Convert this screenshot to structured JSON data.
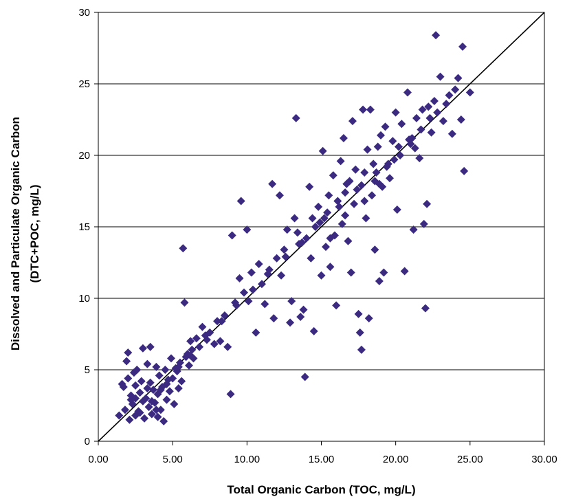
{
  "chart_data": {
    "type": "scatter",
    "title": "",
    "xlabel": "Total Organic Carbon (TOC, mg/L)",
    "ylabel_line1": "Dissolved and Particulate Organic Carbon",
    "ylabel_line2": "(DTC+POC, mg/L)",
    "xlim": [
      0,
      30
    ],
    "ylim": [
      0,
      30
    ],
    "x_ticks": [
      "0.00",
      "5.00",
      "10.00",
      "15.00",
      "20.00",
      "25.00",
      "30.00"
    ],
    "y_ticks": [
      "0",
      "5",
      "10",
      "15",
      "20",
      "25",
      "30"
    ],
    "grid": "horizontal",
    "reference_line": {
      "from": [
        0,
        0
      ],
      "to": [
        30,
        30
      ]
    },
    "marker": "diamond",
    "marker_color": "#3b2a80",
    "points": [
      [
        1.4,
        1.8
      ],
      [
        1.6,
        4.0
      ],
      [
        1.7,
        3.8
      ],
      [
        1.8,
        2.2
      ],
      [
        1.9,
        5.6
      ],
      [
        2.0,
        6.2
      ],
      [
        2.0,
        4.4
      ],
      [
        2.1,
        1.5
      ],
      [
        2.2,
        3.2
      ],
      [
        2.3,
        2.6
      ],
      [
        2.4,
        4.8
      ],
      [
        2.5,
        3.9
      ],
      [
        2.5,
        1.8
      ],
      [
        2.6,
        5.0
      ],
      [
        2.7,
        2.1
      ],
      [
        2.8,
        3.4
      ],
      [
        2.9,
        4.2
      ],
      [
        3.0,
        2.8
      ],
      [
        3.0,
        6.5
      ],
      [
        3.1,
        1.6
      ],
      [
        3.2,
        3.0
      ],
      [
        3.3,
        5.4
      ],
      [
        3.4,
        2.4
      ],
      [
        3.5,
        4.1
      ],
      [
        3.5,
        6.6
      ],
      [
        3.6,
        1.9
      ],
      [
        3.7,
        3.6
      ],
      [
        3.8,
        2.7
      ],
      [
        3.9,
        5.2
      ],
      [
        4.0,
        3.3
      ],
      [
        4.0,
        1.7
      ],
      [
        4.1,
        4.6
      ],
      [
        4.2,
        2.2
      ],
      [
        4.3,
        3.8
      ],
      [
        4.4,
        1.4
      ],
      [
        4.5,
        5.0
      ],
      [
        4.6,
        2.9
      ],
      [
        4.7,
        4.3
      ],
      [
        4.8,
        3.5
      ],
      [
        4.9,
        5.8
      ],
      [
        5.0,
        4.4
      ],
      [
        5.1,
        2.6
      ],
      [
        5.2,
        5.1
      ],
      [
        5.3,
        4.9
      ],
      [
        5.4,
        3.7
      ],
      [
        5.5,
        5.5
      ],
      [
        5.6,
        4.2
      ],
      [
        5.7,
        13.5
      ],
      [
        5.8,
        9.7
      ],
      [
        5.9,
        5.9
      ],
      [
        6.0,
        6.1
      ],
      [
        6.1,
        5.3
      ],
      [
        6.2,
        7.0
      ],
      [
        6.3,
        6.4
      ],
      [
        6.4,
        5.8
      ],
      [
        6.6,
        7.2
      ],
      [
        6.8,
        6.6
      ],
      [
        7.0,
        8.0
      ],
      [
        7.2,
        7.4
      ],
      [
        7.5,
        7.6
      ],
      [
        7.8,
        6.8
      ],
      [
        8.0,
        8.4
      ],
      [
        8.2,
        7.0
      ],
      [
        8.5,
        8.8
      ],
      [
        8.7,
        6.6
      ],
      [
        8.9,
        3.3
      ],
      [
        9.0,
        14.4
      ],
      [
        9.2,
        9.7
      ],
      [
        9.5,
        11.4
      ],
      [
        9.6,
        16.8
      ],
      [
        9.8,
        10.4
      ],
      [
        10.0,
        14.8
      ],
      [
        10.1,
        9.8
      ],
      [
        10.3,
        11.8
      ],
      [
        10.6,
        7.6
      ],
      [
        10.8,
        12.4
      ],
      [
        11.0,
        11.0
      ],
      [
        11.2,
        9.6
      ],
      [
        11.5,
        12.0
      ],
      [
        11.7,
        18.0
      ],
      [
        11.8,
        8.6
      ],
      [
        12.0,
        12.8
      ],
      [
        12.2,
        17.2
      ],
      [
        12.3,
        11.6
      ],
      [
        12.5,
        13.4
      ],
      [
        12.7,
        14.8
      ],
      [
        12.9,
        8.3
      ],
      [
        13.0,
        9.8
      ],
      [
        13.2,
        15.6
      ],
      [
        13.3,
        22.6
      ],
      [
        13.5,
        13.8
      ],
      [
        13.6,
        8.7
      ],
      [
        13.8,
        9.2
      ],
      [
        13.9,
        4.5
      ],
      [
        14.0,
        14.2
      ],
      [
        14.2,
        17.8
      ],
      [
        14.3,
        12.8
      ],
      [
        14.5,
        7.7
      ],
      [
        14.6,
        15.0
      ],
      [
        14.8,
        16.4
      ],
      [
        15.0,
        11.6
      ],
      [
        15.1,
        20.3
      ],
      [
        15.2,
        15.6
      ],
      [
        15.3,
        13.6
      ],
      [
        15.5,
        17.2
      ],
      [
        15.6,
        12.2
      ],
      [
        15.8,
        18.6
      ],
      [
        15.9,
        14.4
      ],
      [
        16.0,
        9.5
      ],
      [
        16.1,
        16.8
      ],
      [
        16.3,
        19.6
      ],
      [
        16.4,
        15.2
      ],
      [
        16.5,
        21.2
      ],
      [
        16.6,
        17.4
      ],
      [
        16.8,
        14.0
      ],
      [
        16.9,
        18.2
      ],
      [
        17.0,
        11.8
      ],
      [
        17.1,
        22.4
      ],
      [
        17.2,
        16.6
      ],
      [
        17.3,
        19.0
      ],
      [
        17.5,
        8.9
      ],
      [
        17.6,
        7.6
      ],
      [
        17.7,
        6.4
      ],
      [
        17.8,
        23.2
      ],
      [
        17.9,
        18.8
      ],
      [
        18.0,
        15.6
      ],
      [
        18.1,
        20.4
      ],
      [
        18.2,
        8.6
      ],
      [
        18.3,
        23.2
      ],
      [
        18.4,
        17.2
      ],
      [
        18.5,
        19.4
      ],
      [
        18.6,
        13.4
      ],
      [
        18.8,
        20.6
      ],
      [
        18.9,
        11.2
      ],
      [
        19.0,
        21.4
      ],
      [
        19.1,
        17.8
      ],
      [
        19.2,
        11.8
      ],
      [
        19.3,
        22.0
      ],
      [
        19.4,
        19.2
      ],
      [
        19.6,
        18.4
      ],
      [
        19.8,
        21.0
      ],
      [
        20.0,
        23.0
      ],
      [
        20.1,
        16.2
      ],
      [
        20.2,
        20.6
      ],
      [
        20.4,
        22.2
      ],
      [
        20.6,
        11.9
      ],
      [
        20.8,
        24.4
      ],
      [
        21.0,
        20.8
      ],
      [
        21.2,
        14.8
      ],
      [
        21.4,
        22.6
      ],
      [
        21.6,
        19.8
      ],
      [
        21.8,
        23.2
      ],
      [
        21.9,
        15.2
      ],
      [
        22.0,
        9.3
      ],
      [
        22.1,
        16.6
      ],
      [
        22.2,
        23.4
      ],
      [
        22.4,
        21.6
      ],
      [
        22.6,
        23.8
      ],
      [
        22.7,
        28.4
      ],
      [
        22.8,
        23.0
      ],
      [
        23.0,
        25.5
      ],
      [
        23.2,
        22.4
      ],
      [
        23.4,
        23.6
      ],
      [
        23.6,
        24.2
      ],
      [
        23.8,
        21.5
      ],
      [
        24.0,
        24.6
      ],
      [
        24.2,
        25.4
      ],
      [
        24.4,
        22.5
      ],
      [
        24.5,
        27.6
      ],
      [
        24.6,
        18.9
      ],
      [
        25.0,
        24.4
      ],
      [
        16.7,
        18.0
      ],
      [
        17.4,
        17.6
      ],
      [
        18.7,
        18.8
      ],
      [
        19.5,
        19.4
      ],
      [
        20.3,
        20.0
      ],
      [
        21.1,
        21.2
      ],
      [
        14.9,
        15.3
      ],
      [
        13.7,
        13.9
      ],
      [
        12.6,
        12.9
      ],
      [
        11.4,
        11.7
      ],
      [
        10.4,
        10.6
      ],
      [
        15.4,
        16.0
      ],
      [
        16.2,
        16.4
      ],
      [
        17.7,
        17.9
      ],
      [
        18.6,
        18.2
      ],
      [
        19.9,
        19.7
      ],
      [
        20.9,
        21.1
      ],
      [
        21.7,
        21.8
      ],
      [
        22.3,
        22.6
      ],
      [
        2.2,
        2.9
      ],
      [
        2.8,
        2.0
      ],
      [
        3.3,
        3.7
      ],
      [
        3.6,
        2.8
      ],
      [
        4.2,
        3.6
      ],
      [
        2.5,
        3.0
      ],
      [
        3.9,
        2.2
      ],
      [
        4.6,
        4.0
      ],
      [
        5.4,
        5.2
      ],
      [
        6.2,
        6.0
      ],
      [
        7.3,
        7.1
      ],
      [
        8.3,
        8.4
      ],
      [
        9.3,
        9.5
      ],
      [
        13.4,
        14.6
      ],
      [
        14.4,
        15.6
      ],
      [
        15.6,
        14.2
      ],
      [
        16.6,
        15.8
      ],
      [
        17.9,
        16.8
      ],
      [
        18.9,
        18.0
      ],
      [
        21.3,
        20.5
      ]
    ]
  }
}
